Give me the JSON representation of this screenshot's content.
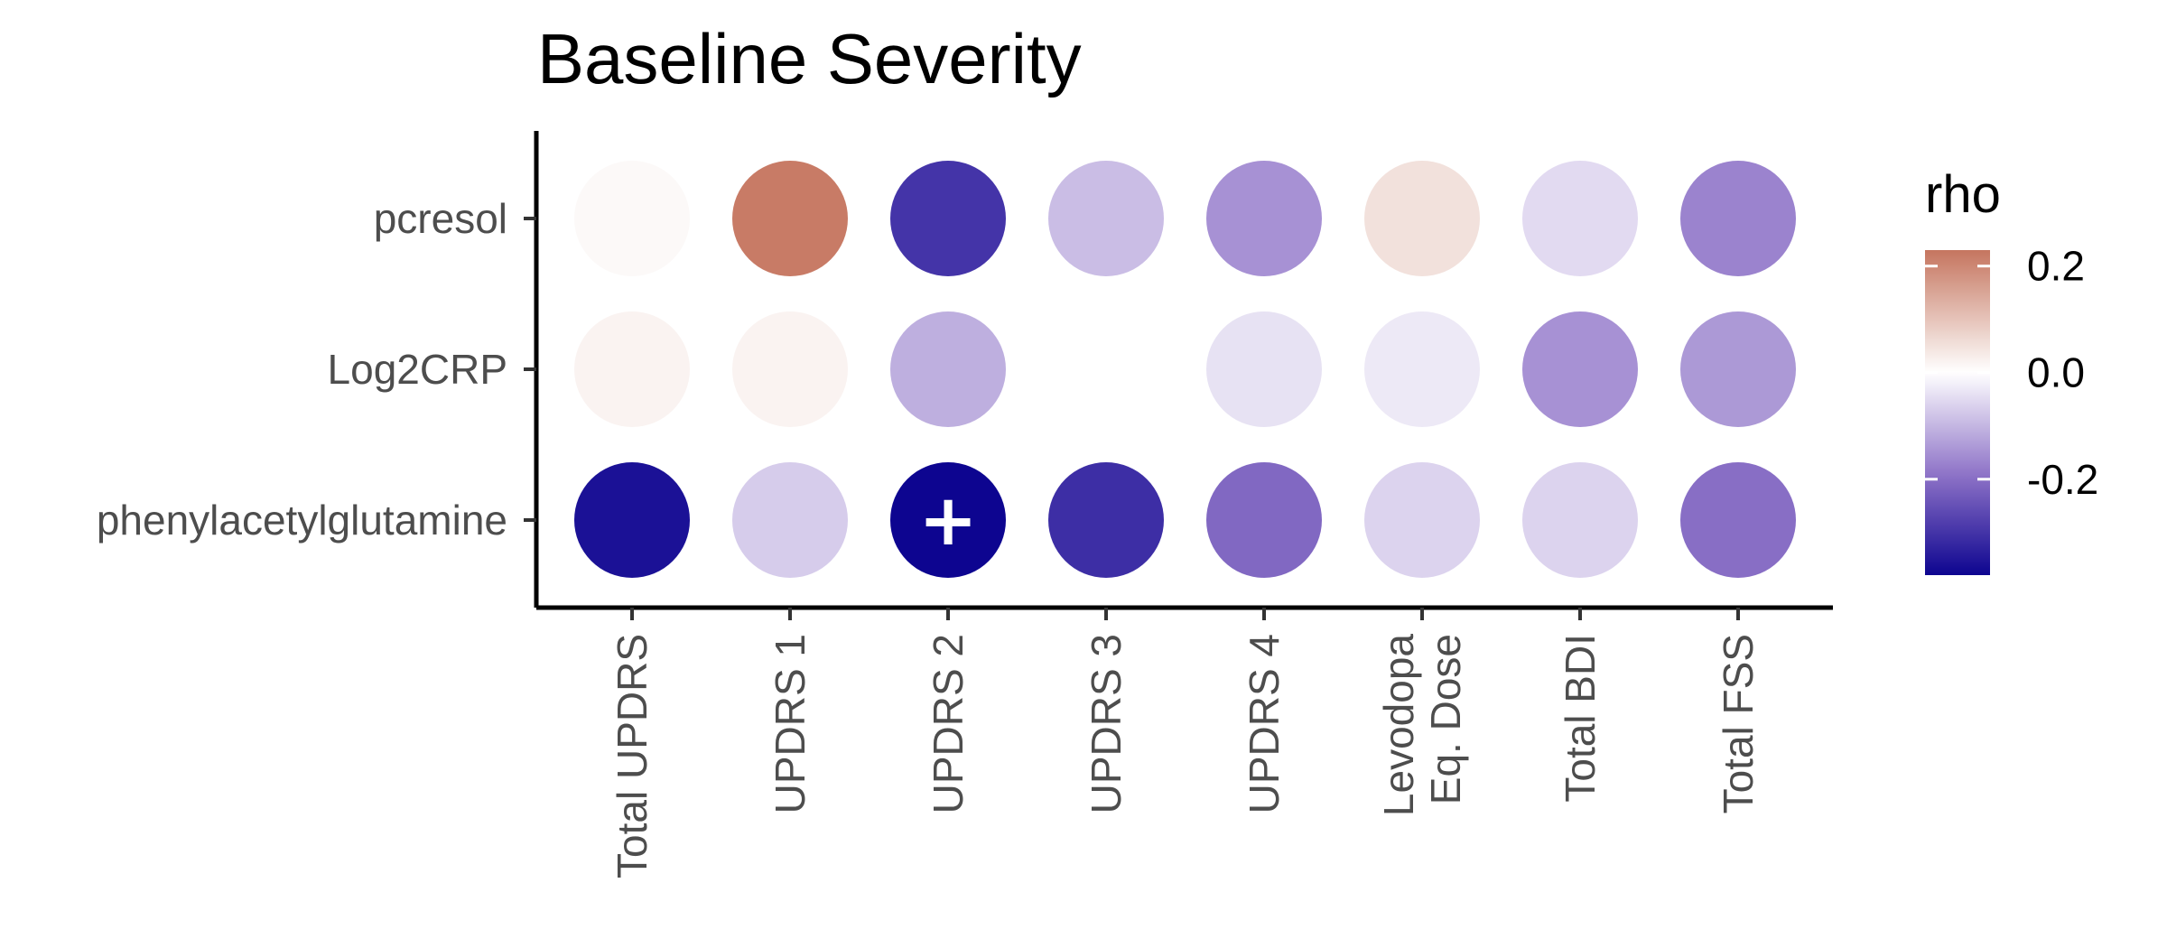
{
  "chart_data": {
    "type": "heatmap",
    "title": "Baseline Severity",
    "xlabel": "",
    "ylabel": "",
    "rows": [
      "pcresol",
      "Log2CRP",
      "phenylacetylglutamine"
    ],
    "columns": [
      [
        "Total UPDRS"
      ],
      [
        "UPDRS 1"
      ],
      [
        "UPDRS 2"
      ],
      [
        "UPDRS 3"
      ],
      [
        "UPDRS 4"
      ],
      [
        "Levodopa",
        "Eq. Dose"
      ],
      [
        "Total BDI"
      ],
      [
        "Total FSS"
      ]
    ],
    "values": [
      [
        0.01,
        0.22,
        -0.3,
        -0.09,
        -0.15,
        0.05,
        -0.05,
        -0.17
      ],
      [
        0.02,
        0.02,
        -0.11,
        0.0,
        -0.04,
        -0.03,
        -0.15,
        -0.14
      ],
      [
        -0.36,
        -0.07,
        -0.38,
        -0.31,
        -0.21,
        -0.06,
        -0.06,
        -0.2
      ]
    ],
    "significance": [
      [
        "",
        "",
        "",
        "",
        "",
        "",
        "",
        ""
      ],
      [
        "",
        "",
        "",
        "",
        "",
        "",
        "",
        ""
      ],
      [
        "",
        "",
        "+",
        "",
        "",
        "",
        "",
        ""
      ]
    ],
    "legend": {
      "title": "rho",
      "position": "right",
      "ticks": [
        0.2,
        0.0,
        -0.2
      ],
      "tick_labels": [
        "0.2",
        "0.0",
        "-0.2"
      ],
      "range": [
        -0.38,
        0.23
      ]
    },
    "colors": {
      "high": "#c5755f",
      "mid": "#ffffff",
      "low": "#0d0590",
      "low_mid": "#8f74c8"
    },
    "grid": false
  }
}
